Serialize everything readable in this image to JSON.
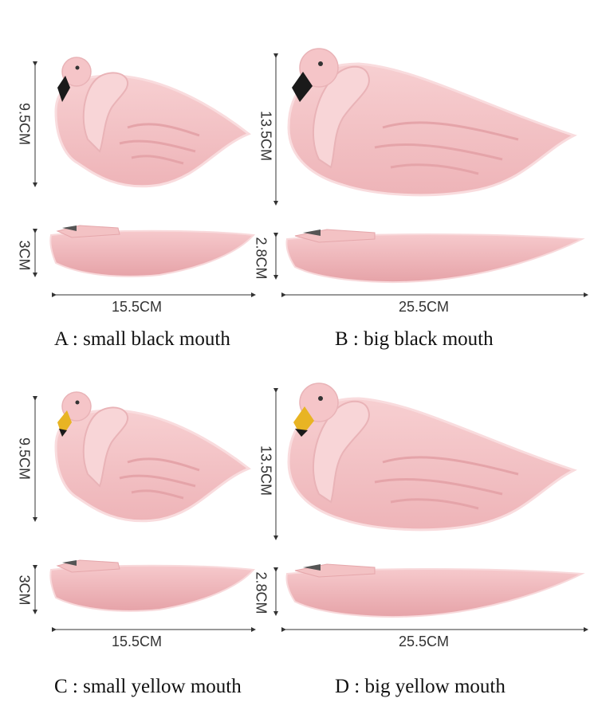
{
  "dimensions": {
    "small_height": "9.5CM",
    "small_depth": "3CM",
    "small_length": "15.5CM",
    "big_height": "13.5CM",
    "big_depth": "2.8CM",
    "big_length": "25.5CM"
  },
  "captions": {
    "a": "A : small black mouth",
    "b": "B : big black mouth",
    "c": "C : small yellow mouth",
    "d": "D : big yellow mouth"
  },
  "colors": {
    "plate_pink": "#f3c2c4",
    "plate_shade": "#e7a9ad",
    "beak_black": "#1a1a1a",
    "beak_yellow": "#e8b423"
  }
}
